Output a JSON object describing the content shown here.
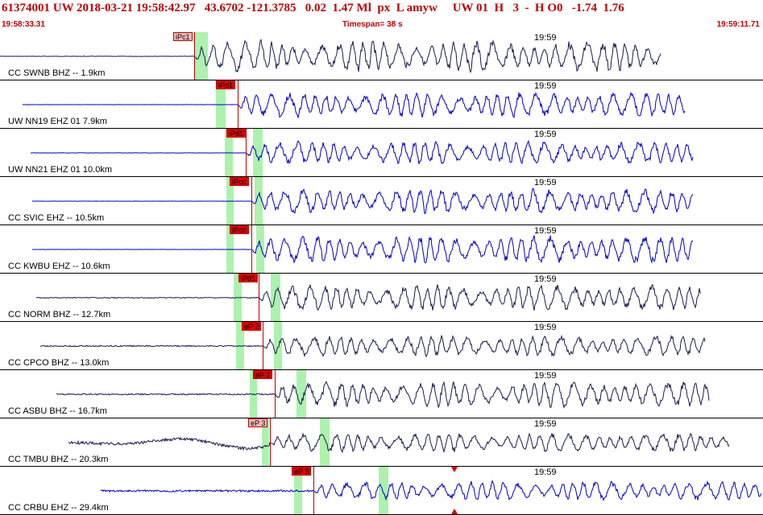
{
  "header": {
    "info_line": "61374001 UW 2018-03-21 19:58:42.97   43.6702 -121.3785   0.02  1.47 Ml  px  L amyw     UW 01  H   3  -  H O0   -1.74  1.76",
    "start_time": "19:58:33.31",
    "timespan": "Timespan=  38 s",
    "end_time": "19:59:11.71"
  },
  "time_mark_label": "19:59",
  "colors": {
    "header_text": "#c00000",
    "pick_red": "#e00000",
    "pick_window_green": "#90ee90",
    "trace_blue": "#0000cc",
    "trace_navy": "#1a1a4e"
  },
  "panels": [
    {
      "label": "CC SWNB BHZ -- 1.9km",
      "pick": "iPc1",
      "pick_style": "light",
      "trace_color": "#1a1a4e",
      "onset_frac": 0.255,
      "amp": 0.75,
      "noise": 0.02
    },
    {
      "label": "UW NN19 EHZ 01 7.9km",
      "pick": "iPd1",
      "pick_style": "red",
      "trace_color": "#0000cc",
      "onset_frac": 0.31,
      "amp": 0.6,
      "noise": 0.01
    },
    {
      "label": "UW NN21 EHZ 01 10.0km",
      "pick": "iPd1",
      "pick_style": "red",
      "trace_color": "#0000cc",
      "onset_frac": 0.325,
      "amp": 0.55,
      "noise": 0.02
    },
    {
      "label": "CC SVIC EHZ -- 10.5km",
      "pick": "iPc0",
      "pick_style": "red",
      "trace_color": "#0000cc",
      "onset_frac": 0.33,
      "amp": 0.6,
      "noise": 0.01
    },
    {
      "label": "CC KWBU EHZ -- 10.6km",
      "pick": "iPc0",
      "pick_style": "red",
      "trace_color": "#0000cc",
      "onset_frac": 0.33,
      "amp": 0.65,
      "noise": 0.01
    },
    {
      "label": "CC NORM BHZ -- 12.7km",
      "pick": "iPd1",
      "pick_style": "red",
      "trace_color": "#1a1a4e",
      "onset_frac": 0.34,
      "amp": 0.6,
      "noise": 0.05
    },
    {
      "label": "CC CPCO BHZ -- 13.0km",
      "pick": "eP 2",
      "pick_style": "red",
      "trace_color": "#1a1a4e",
      "onset_frac": 0.345,
      "amp": 0.5,
      "noise": 0.07
    },
    {
      "label": "CC ASBU BHZ -- 16.7km",
      "pick": "eP 2",
      "pick_style": "red",
      "trace_color": "#1a1a4e",
      "onset_frac": 0.36,
      "amp": 0.6,
      "noise": 0.08
    },
    {
      "label": "CC TMBU BHZ -- 20.3km",
      "pick": "eP 3",
      "pick_style": "light",
      "trace_color": "#1a1a4e",
      "onset_frac": 0.355,
      "amp": 0.45,
      "noise": 0.18
    },
    {
      "label": "CC CRBU EHZ -- 29.4km",
      "pick": "eP 3",
      "pick_style": "red",
      "trace_color": "#0000cc",
      "onset_frac": 0.41,
      "amp": 0.45,
      "noise": 0.12
    }
  ]
}
